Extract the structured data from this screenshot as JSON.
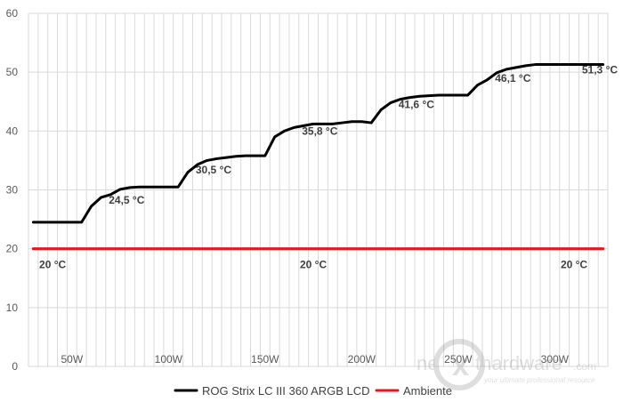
{
  "chart_data": {
    "type": "line",
    "ylim": [
      0,
      60
    ],
    "yticks": [
      0,
      10,
      20,
      30,
      40,
      50,
      60
    ],
    "x_tick_labels": [
      "50W",
      "100W",
      "150W",
      "200W",
      "250W",
      "300W"
    ],
    "x_count": 60,
    "grid": true,
    "legend_position": "bottom",
    "series": [
      {
        "name": "ROG Strix LC III 360 ARGB LCD",
        "color": "#000000",
        "values": [
          24.5,
          24.5,
          24.5,
          24.5,
          24.5,
          24.5,
          27.2,
          28.7,
          29.2,
          30.1,
          30.4,
          30.5,
          30.5,
          30.5,
          30.5,
          30.5,
          33.0,
          34.3,
          35.0,
          35.3,
          35.5,
          35.7,
          35.8,
          35.8,
          35.8,
          39.0,
          40.0,
          40.6,
          40.9,
          41.2,
          41.2,
          41.2,
          41.4,
          41.6,
          41.6,
          41.4,
          43.6,
          44.8,
          45.4,
          45.7,
          45.9,
          46.0,
          46.1,
          46.1,
          46.1,
          46.1,
          47.8,
          48.7,
          49.9,
          50.5,
          50.8,
          51.1,
          51.3,
          51.3,
          51.3,
          51.3,
          51.3,
          51.3,
          51.3,
          51.3
        ],
        "labels": [
          {
            "index": 8,
            "text": "24,5 °C"
          },
          {
            "index": 17,
            "text": "30,5 °C"
          },
          {
            "index": 28,
            "text": "35,8 °C"
          },
          {
            "index": 38,
            "text": "41,6 °C"
          },
          {
            "index": 48,
            "text": "46,1 °C"
          },
          {
            "index": 57,
            "text": "51,3 °C"
          }
        ]
      },
      {
        "name": "Ambiente",
        "color": "#e31a1c",
        "values": [
          20,
          20,
          20,
          20,
          20,
          20,
          20,
          20,
          20,
          20,
          20,
          20,
          20,
          20,
          20,
          20,
          20,
          20,
          20,
          20,
          20,
          20,
          20,
          20,
          20,
          20,
          20,
          20,
          20,
          20,
          20,
          20,
          20,
          20,
          20,
          20,
          20,
          20,
          20,
          20,
          20,
          20,
          20,
          20,
          20,
          20,
          20,
          20,
          20,
          20,
          20,
          20,
          20,
          20,
          20,
          20,
          20,
          20,
          20,
          20
        ],
        "labels": [
          {
            "index": 2,
            "text": "20 °C"
          },
          {
            "index": 29,
            "text": "20 °C"
          },
          {
            "index": 56,
            "text": "20 °C"
          }
        ]
      }
    ]
  },
  "watermark": {
    "brand_prefix": "ne",
    "brand_letter": "x",
    "brand_suffix": "thardware",
    "brand_tld": ".com",
    "tagline": "your ultimate professional resource"
  }
}
